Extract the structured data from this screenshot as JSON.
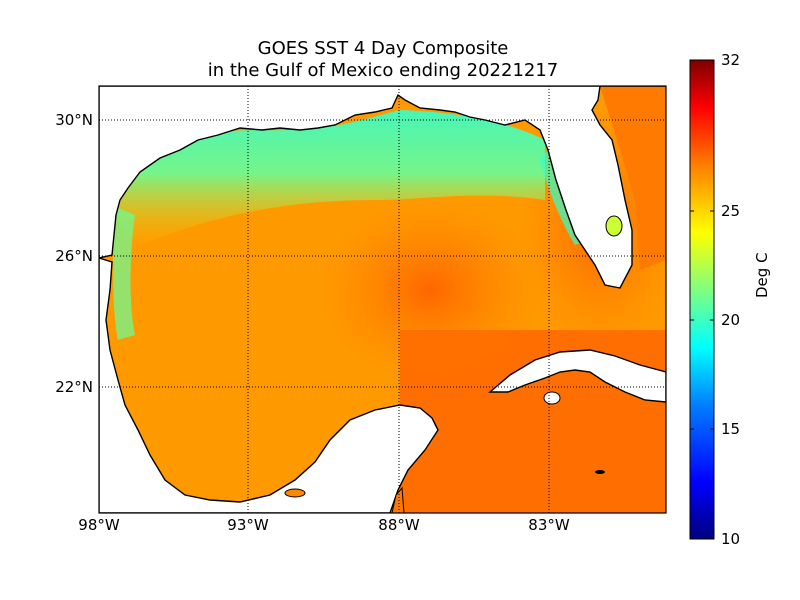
{
  "title_line1": "GOES SST 4 Day Composite",
  "title_line2": "in the Gulf of Mexico ending 20221217",
  "lat_labels": [
    "30°N",
    "26°N",
    "22°N"
  ],
  "lon_labels": [
    "98°W",
    "93°W",
    "88°W",
    "83°W"
  ],
  "colorbar": {
    "label": "Deg C",
    "ticks": [
      "32",
      "25",
      "20",
      "15",
      "10"
    ],
    "min": 10,
    "max": 32,
    "colors": [
      "#00007f",
      "#0000ff",
      "#007fff",
      "#00ffff",
      "#7fff7f",
      "#ffff00",
      "#ff7f00",
      "#ff0000",
      "#7f0000"
    ]
  },
  "sst_colors": {
    "warm_open_gulf": "#ff9900",
    "hot_loop_current": "#ff6a00",
    "cool_shelf": "#33ffcc",
    "coastal": "#ccff33",
    "land": "#ffffff"
  }
}
